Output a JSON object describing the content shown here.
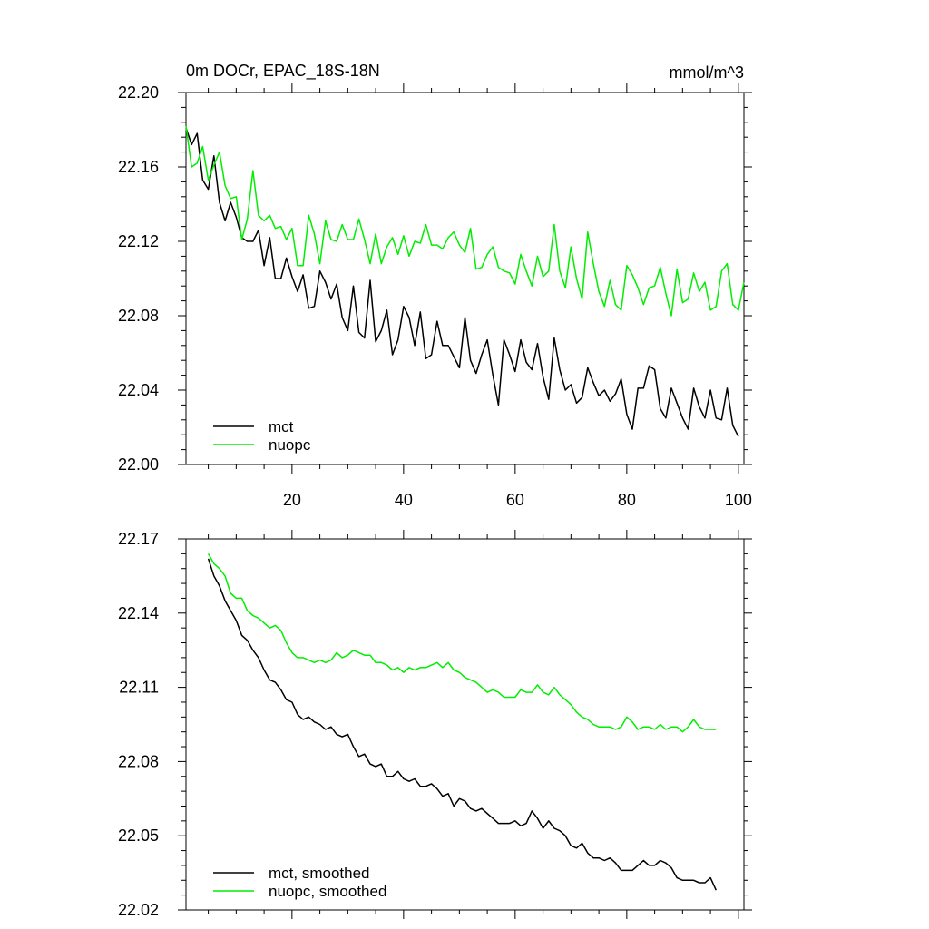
{
  "figure": {
    "title_left": "0m DOCr, EPAC_18S-18N",
    "title_right": "mmol/m^3"
  },
  "chart_data": [
    {
      "type": "line",
      "title": "0m DOCr, EPAC_18S-18N",
      "units": "mmol/m^3",
      "xlim": [
        1,
        101
      ],
      "ylim": [
        22.0,
        22.2
      ],
      "xticks": [
        20,
        40,
        60,
        80,
        100
      ],
      "xtick_labels": [
        "20",
        "40",
        "60",
        "80",
        "100"
      ],
      "yticks": [
        22.0,
        22.04,
        22.08,
        22.12,
        22.16,
        22.2
      ],
      "ytick_labels": [
        "22.00",
        "22.04",
        "22.08",
        "22.12",
        "22.16",
        "22.20"
      ],
      "legend": "bottom-left",
      "series": [
        {
          "name": "mct",
          "color": "#000000",
          "x_start": 1,
          "values": [
            22.181,
            22.172,
            22.178,
            22.153,
            22.148,
            22.166,
            22.141,
            22.131,
            22.141,
            22.133,
            22.122,
            22.12,
            22.12,
            22.126,
            22.107,
            22.122,
            22.1,
            22.1,
            22.111,
            22.101,
            22.093,
            22.102,
            22.084,
            22.085,
            22.104,
            22.098,
            22.089,
            22.097,
            22.079,
            22.072,
            22.096,
            22.071,
            22.068,
            22.099,
            22.066,
            22.072,
            22.083,
            22.059,
            22.067,
            22.085,
            22.079,
            22.064,
            22.082,
            22.057,
            22.059,
            22.077,
            22.064,
            22.064,
            22.058,
            22.052,
            22.079,
            22.056,
            22.049,
            22.059,
            22.067,
            22.048,
            22.032,
            22.067,
            22.059,
            22.05,
            22.067,
            22.055,
            22.051,
            22.065,
            22.047,
            22.035,
            22.068,
            22.051,
            22.04,
            22.043,
            22.033,
            22.036,
            22.052,
            22.044,
            22.037,
            22.04,
            22.034,
            22.038,
            22.046,
            22.027,
            22.019,
            22.041,
            22.041,
            22.053,
            22.051,
            22.03,
            22.025,
            22.041,
            22.033,
            22.025,
            22.019,
            22.041,
            22.031,
            22.025,
            22.04,
            22.025,
            22.024,
            22.041,
            22.021,
            22.015
          ]
        },
        {
          "name": "nuopc",
          "color": "#00ee00",
          "x_start": 1,
          "values": [
            22.182,
            22.16,
            22.162,
            22.171,
            22.153,
            22.161,
            22.168,
            22.15,
            22.143,
            22.144,
            22.121,
            22.132,
            22.158,
            22.134,
            22.131,
            22.134,
            22.127,
            22.128,
            22.121,
            22.127,
            22.107,
            22.107,
            22.134,
            22.124,
            22.108,
            22.131,
            22.121,
            22.12,
            22.129,
            22.121,
            22.121,
            22.132,
            22.121,
            22.108,
            22.124,
            22.108,
            22.117,
            22.122,
            22.113,
            22.123,
            22.112,
            22.12,
            22.119,
            22.129,
            22.118,
            22.118,
            22.116,
            22.122,
            22.125,
            22.118,
            22.114,
            22.127,
            22.105,
            22.106,
            22.113,
            22.117,
            22.106,
            22.104,
            22.103,
            22.097,
            22.113,
            22.104,
            22.096,
            22.112,
            22.101,
            22.104,
            22.129,
            22.104,
            22.095,
            22.117,
            22.1,
            22.089,
            22.125,
            22.108,
            22.093,
            22.085,
            22.099,
            22.086,
            22.083,
            22.107,
            22.102,
            22.095,
            22.086,
            22.095,
            22.096,
            22.106,
            22.092,
            22.08,
            22.105,
            22.087,
            22.089,
            22.103,
            22.093,
            22.098,
            22.083,
            22.085,
            22.104,
            22.108,
            22.086,
            22.083,
            22.098
          ]
        }
      ]
    },
    {
      "type": "line",
      "title": "",
      "xlim": [
        1,
        101
      ],
      "ylim": [
        22.02,
        22.17
      ],
      "xticks": [
        20,
        40,
        60,
        80,
        100
      ],
      "xtick_labels": [],
      "yticks": [
        22.02,
        22.05,
        22.08,
        22.11,
        22.14,
        22.17
      ],
      "ytick_labels": [
        "22.02",
        "22.05",
        "22.08",
        "22.11",
        "22.14",
        "22.17"
      ],
      "legend": "bottom-left",
      "series": [
        {
          "name": "mct, smoothed",
          "color": "#000000",
          "x_start": 5,
          "values": [
            22.162,
            22.155,
            22.151,
            22.145,
            22.141,
            22.137,
            22.131,
            22.129,
            22.125,
            22.122,
            22.117,
            22.113,
            22.112,
            22.109,
            22.105,
            22.104,
            22.099,
            22.097,
            22.098,
            22.096,
            22.095,
            22.093,
            22.094,
            22.091,
            22.09,
            22.091,
            22.086,
            22.082,
            22.083,
            22.079,
            22.078,
            22.079,
            22.074,
            22.074,
            22.076,
            22.073,
            22.072,
            22.073,
            22.07,
            22.07,
            22.071,
            22.069,
            22.066,
            22.067,
            22.062,
            22.065,
            22.064,
            22.061,
            22.06,
            22.061,
            22.059,
            22.057,
            22.055,
            22.055,
            22.055,
            22.056,
            22.054,
            22.055,
            22.06,
            22.057,
            22.053,
            22.056,
            22.053,
            22.052,
            22.05,
            22.046,
            22.045,
            22.047,
            22.043,
            22.041,
            22.041,
            22.04,
            22.041,
            22.039,
            22.036,
            22.036,
            22.036,
            22.038,
            22.04,
            22.038,
            22.038,
            22.04,
            22.039,
            22.037,
            22.033,
            22.032,
            22.032,
            22.032,
            22.031,
            22.031,
            22.033,
            22.028
          ]
        },
        {
          "name": "nuopc, smoothed",
          "color": "#00ee00",
          "x_start": 5,
          "values": [
            22.164,
            22.16,
            22.158,
            22.155,
            22.148,
            22.146,
            22.146,
            22.141,
            22.139,
            22.138,
            22.136,
            22.134,
            22.135,
            22.133,
            22.128,
            22.124,
            22.122,
            22.122,
            22.121,
            22.12,
            22.121,
            22.12,
            22.121,
            22.124,
            22.122,
            22.123,
            22.125,
            22.124,
            22.123,
            22.123,
            22.12,
            22.12,
            22.119,
            22.117,
            22.118,
            22.116,
            22.118,
            22.117,
            22.118,
            22.118,
            22.119,
            22.12,
            22.118,
            22.12,
            22.117,
            22.116,
            22.114,
            22.113,
            22.112,
            22.11,
            22.108,
            22.109,
            22.108,
            22.106,
            22.106,
            22.106,
            22.109,
            22.108,
            22.108,
            22.111,
            22.108,
            22.107,
            22.11,
            22.107,
            22.105,
            22.103,
            22.1,
            22.098,
            22.097,
            22.095,
            22.094,
            22.094,
            22.094,
            22.093,
            22.094,
            22.098,
            22.096,
            22.093,
            22.094,
            22.094,
            22.093,
            22.095,
            22.093,
            22.094,
            22.094,
            22.092,
            22.094,
            22.097,
            22.094,
            22.093,
            22.093,
            22.093
          ]
        }
      ]
    }
  ]
}
